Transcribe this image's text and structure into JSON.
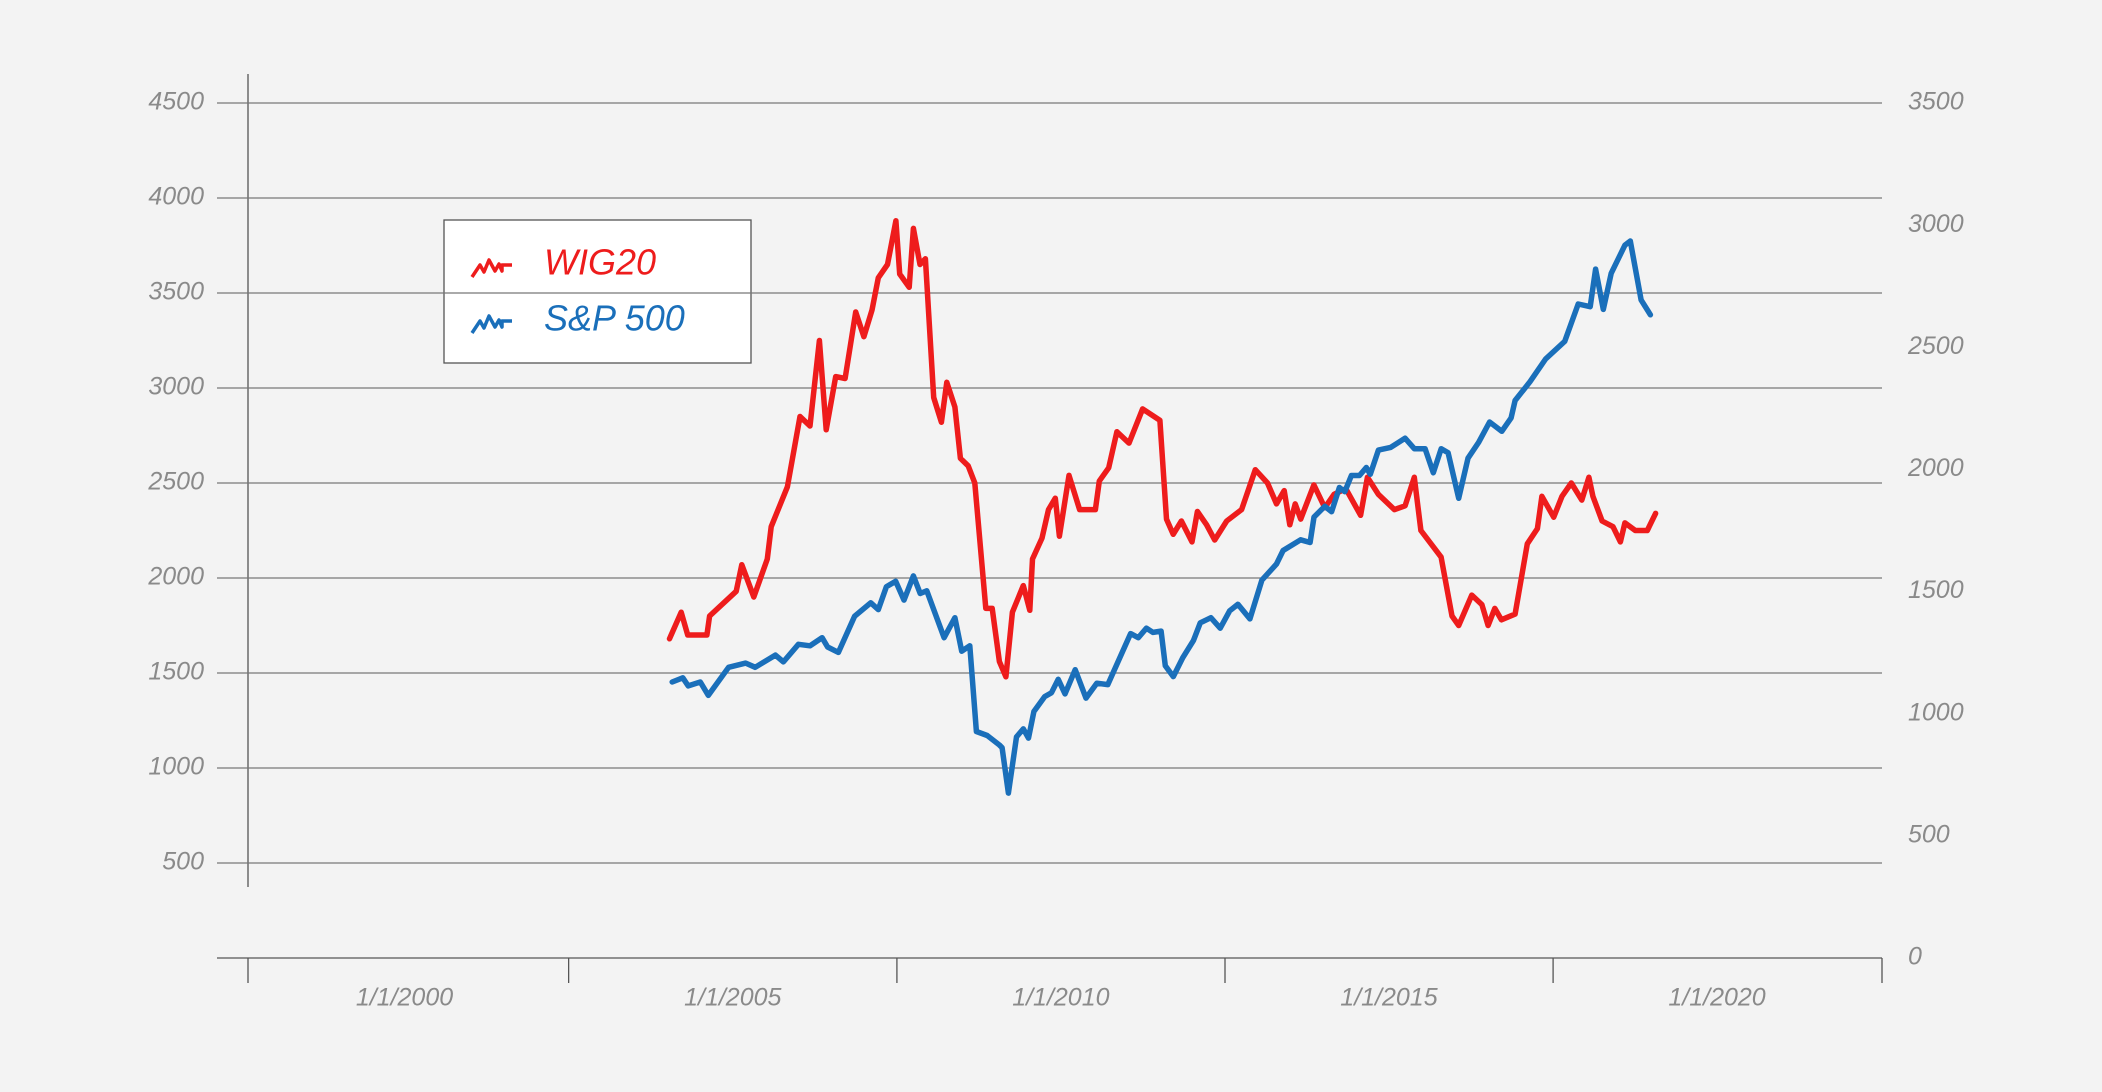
{
  "chart_data": {
    "type": "line",
    "grid": true,
    "legend": "upper-left",
    "xlim": [
      "1997-08-13",
      "2022-07-07"
    ],
    "xticks": [
      {
        "value": "2000-01-01",
        "label": "1/1/2000"
      },
      {
        "value": "2005-01-01",
        "label": "1/1/2005"
      },
      {
        "value": "2010-01-01",
        "label": "1/1/2010"
      },
      {
        "value": "2015-01-01",
        "label": "1/1/2015"
      },
      {
        "value": "2020-01-01",
        "label": "1/1/2020"
      }
    ],
    "ylim": [
      0,
      4500
    ],
    "yticks": [
      500,
      1000,
      1500,
      2000,
      2500,
      3000,
      3500,
      4000,
      4500
    ],
    "y2lim": [
      0,
      3500
    ],
    "y2ticks": [
      0,
      500,
      1000,
      1500,
      2000,
      2500,
      3000,
      3500
    ],
    "series": [
      {
        "name": "WIG20",
        "color": "#ee1c1c",
        "x": [
          "2004-01-15",
          "2004-03-20",
          "2004-04-25",
          "2004-08-10",
          "2004-08-25",
          "2005-01-20",
          "2005-02-20",
          "2005-04-28",
          "2005-07-12",
          "2005-08-03",
          "2005-11-01",
          "2006-01-10",
          "2006-03-07",
          "2006-04-28",
          "2006-06-05",
          "2006-07-28",
          "2006-09-18",
          "2006-11-16",
          "2007-01-01",
          "2007-02-15",
          "2007-03-22",
          "2007-05-12",
          "2007-06-28",
          "2007-07-19",
          "2007-09-10",
          "2007-10-03",
          "2007-11-09",
          "2007-12-09",
          "2008-01-24",
          "2008-03-07",
          "2008-04-06",
          "2008-05-21",
          "2008-06-21",
          "2008-08-03",
          "2008-09-09",
          "2008-11-09",
          "2008-12-15",
          "2009-01-24",
          "2009-03-01",
          "2009-04-06",
          "2009-06-06",
          "2009-07-12",
          "2009-07-27",
          "2009-09-18",
          "2009-10-24",
          "2009-12-01",
          "2009-12-24",
          "2010-02-15",
          "2010-04-15",
          "2010-07-12",
          "2010-08-03",
          "2010-09-24",
          "2010-11-09",
          "2011-01-15",
          "2011-04-01",
          "2011-07-06",
          "2011-08-12",
          "2011-09-18",
          "2011-11-03",
          "2012-01-01",
          "2012-01-31",
          "2012-03-22",
          "2012-05-06",
          "2012-07-12",
          "2012-10-03",
          "2012-12-18",
          "2013-02-24",
          "2013-04-15",
          "2013-05-28",
          "2013-06-28",
          "2013-07-28",
          "2013-08-28",
          "2013-11-09",
          "2014-01-09",
          "2014-03-01",
          "2014-05-06",
          "2014-07-27",
          "2014-09-03",
          "2014-11-03",
          "2015-01-31",
          "2015-04-01",
          "2015-05-22",
          "2015-06-28",
          "2015-10-18",
          "2015-12-18",
          "2016-01-24",
          "2016-04-06",
          "2016-06-01",
          "2016-07-06",
          "2016-08-12",
          "2016-09-18",
          "2016-12-03",
          "2017-02-09",
          "2017-04-06",
          "2017-05-01",
          "2017-07-06",
          "2017-08-21",
          "2017-10-12",
          "2017-12-09",
          "2018-01-18",
          "2018-02-09",
          "2018-04-01",
          "2018-06-01",
          "2018-07-12",
          "2018-08-06",
          "2018-10-03",
          "2018-12-09",
          "2019-01-24"
        ],
        "values": [
          1680,
          1820,
          1700,
          1700,
          1800,
          1930,
          2070,
          1900,
          2100,
          2270,
          2480,
          2850,
          2800,
          3250,
          2780,
          3060,
          3050,
          3400,
          3270,
          3410,
          3580,
          3650,
          3880,
          3600,
          3530,
          3840,
          3650,
          3680,
          2950,
          2820,
          3030,
          2900,
          2630,
          2590,
          2500,
          1840,
          1840,
          1560,
          1480,
          1820,
          1960,
          1830,
          2100,
          2210,
          2360,
          2420,
          2220,
          2540,
          2360,
          2360,
          2510,
          2580,
          2770,
          2710,
          2890,
          2830,
          2310,
          2230,
          2300,
          2190,
          2350,
          2280,
          2200,
          2300,
          2360,
          2570,
          2500,
          2390,
          2460,
          2280,
          2390,
          2310,
          2490,
          2370,
          2440,
          2470,
          2330,
          2530,
          2440,
          2360,
          2380,
          2530,
          2250,
          2110,
          1800,
          1750,
          1910,
          1860,
          1750,
          1840,
          1780,
          1810,
          2180,
          2260,
          2430,
          2320,
          2430,
          2500,
          2410,
          2530,
          2430,
          2300,
          2270,
          2190,
          2290,
          2250,
          2250,
          2340
        ]
      },
      {
        "name": "S&P 500",
        "color": "#1a6fba",
        "axis": "y2",
        "x": [
          "2004-01-30",
          "2004-03-29",
          "2004-04-28",
          "2004-07-04",
          "2004-08-18",
          "2004-12-09",
          "2005-03-14",
          "2005-05-06",
          "2005-08-26",
          "2005-10-10",
          "2006-01-01",
          "2006-03-07",
          "2006-05-13",
          "2006-06-13",
          "2006-08-12",
          "2006-11-10",
          "2007-02-08",
          "2007-03-22",
          "2007-05-06",
          "2007-06-27",
          "2007-08-12",
          "2007-10-03",
          "2007-11-10",
          "2007-12-17",
          "2008-03-22",
          "2008-05-21",
          "2008-06-28",
          "2008-08-12",
          "2008-09-18",
          "2008-11-17",
          "2009-01-24",
          "2009-02-08",
          "2009-03-15",
          "2009-04-29",
          "2009-06-06",
          "2009-07-05",
          "2009-08-04",
          "2009-10-03",
          "2009-11-10",
          "2009-12-17",
          "2010-01-24",
          "2010-03-22",
          "2010-05-21",
          "2010-07-20",
          "2010-09-19",
          "2011-01-24",
          "2011-03-08",
          "2011-04-22",
          "2011-05-29",
          "2011-07-13",
          "2011-08-05",
          "2011-09-19",
          "2011-11-10",
          "2012-01-09",
          "2012-02-16",
          "2012-04-15",
          "2012-06-06",
          "2012-07-28",
          "2012-09-12",
          "2012-11-18",
          "2013-01-24",
          "2013-04-15",
          "2013-05-22",
          "2013-08-27",
          "2013-10-19",
          "2013-11-10",
          "2014-01-09",
          "2014-02-16",
          "2014-03-31",
          "2014-04-30",
          "2014-06-06",
          "2014-07-21",
          "2014-08-28",
          "2014-09-19",
          "2014-11-03",
          "2015-01-10",
          "2015-04-01",
          "2015-05-22",
          "2015-07-21",
          "2015-09-05",
          "2015-10-19",
          "2015-11-26",
          "2016-01-24",
          "2016-03-16",
          "2016-05-15",
          "2016-07-14",
          "2016-09-20",
          "2016-11-11",
          "2016-12-03",
          "2017-02-24",
          "2017-05-22",
          "2017-09-05",
          "2017-11-19",
          "2018-01-25",
          "2018-02-24",
          "2018-04-08",
          "2018-05-22",
          "2018-08-06",
          "2018-09-05",
          "2018-11-04",
          "2018-12-26"
        ],
        "values": [
          1130,
          1147,
          1114,
          1130,
          1075,
          1190,
          1207,
          1190,
          1240,
          1212,
          1284,
          1278,
          1311,
          1273,
          1251,
          1399,
          1454,
          1426,
          1520,
          1542,
          1465,
          1564,
          1492,
          1503,
          1311,
          1393,
          1256,
          1278,
          927,
          911,
          872,
          861,
          675,
          905,
          938,
          900,
          1009,
          1070,
          1086,
          1141,
          1081,
          1180,
          1064,
          1125,
          1119,
          1328,
          1311,
          1350,
          1333,
          1338,
          1196,
          1152,
          1229,
          1300,
          1372,
          1393,
          1350,
          1421,
          1448,
          1388,
          1547,
          1613,
          1668,
          1712,
          1701,
          1805,
          1849,
          1827,
          1926,
          1909,
          1975,
          1975,
          2008,
          1980,
          2079,
          2090,
          2128,
          2085,
          2085,
          1986,
          2085,
          2068,
          1882,
          2046,
          2112,
          2194,
          2156,
          2211,
          2282,
          2359,
          2452,
          2524,
          2677,
          2666,
          2820,
          2655,
          2803,
          2918,
          2935,
          2694,
          2633
        ]
      }
    ]
  }
}
